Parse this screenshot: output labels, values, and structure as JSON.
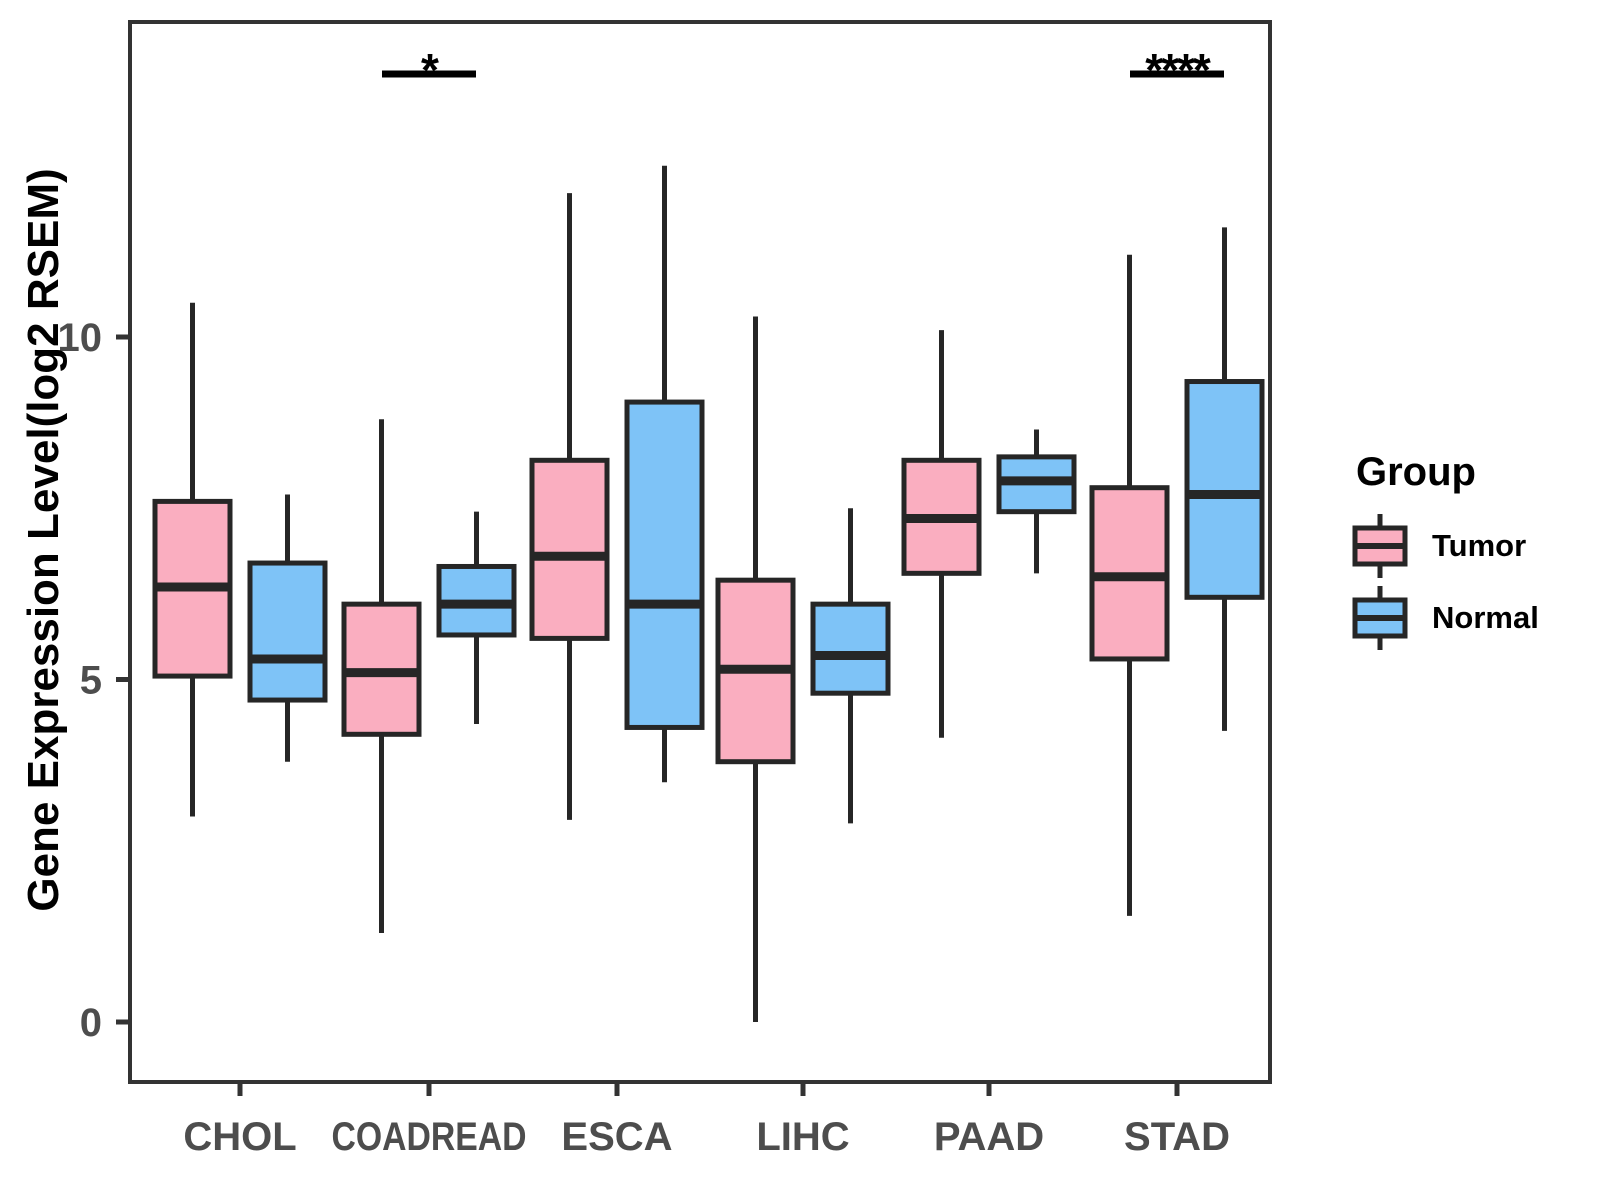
{
  "chart_data": {
    "type": "boxplot",
    "title": "",
    "xlabel": "",
    "ylabel": "Gene Expression Level(log2 RSEM)",
    "ylim": [
      -0.9,
      14.6
    ],
    "y_ticks": [
      0,
      5,
      10
    ],
    "grid": false,
    "categories": [
      "CHOL",
      "COADREAD",
      "ESCA",
      "LIHC",
      "PAAD",
      "STAD"
    ],
    "legend": {
      "title": "Group",
      "position": "right"
    },
    "series": [
      {
        "name": "Tumor",
        "color": "#FAAEC0",
        "boxes": [
          {
            "category": "CHOL",
            "min": 3.0,
            "q1": 5.05,
            "median": 6.35,
            "q3": 7.6,
            "max": 10.5
          },
          {
            "category": "COADREAD",
            "min": 1.3,
            "q1": 4.2,
            "median": 5.1,
            "q3": 6.1,
            "max": 8.8
          },
          {
            "category": "ESCA",
            "min": 2.95,
            "q1": 5.6,
            "median": 6.8,
            "q3": 8.2,
            "max": 12.1
          },
          {
            "category": "LIHC",
            "min": 0.0,
            "q1": 3.8,
            "median": 5.15,
            "q3": 6.45,
            "max": 10.3
          },
          {
            "category": "PAAD",
            "min": 4.15,
            "q1": 6.55,
            "median": 7.35,
            "q3": 8.2,
            "max": 10.1
          },
          {
            "category": "STAD",
            "min": 1.55,
            "q1": 5.3,
            "median": 6.5,
            "q3": 7.8,
            "max": 11.2
          }
        ]
      },
      {
        "name": "Normal",
        "color": "#7EC3F7",
        "boxes": [
          {
            "category": "CHOL",
            "min": 3.8,
            "q1": 4.7,
            "median": 5.3,
            "q3": 6.7,
            "max": 7.7
          },
          {
            "category": "COADREAD",
            "min": 4.35,
            "q1": 5.65,
            "median": 6.1,
            "q3": 6.65,
            "max": 7.45
          },
          {
            "category": "ESCA",
            "min": 3.5,
            "q1": 4.3,
            "median": 6.1,
            "q3": 9.05,
            "max": 12.5
          },
          {
            "category": "LIHC",
            "min": 2.9,
            "q1": 4.8,
            "median": 5.35,
            "q3": 6.1,
            "max": 7.5
          },
          {
            "category": "PAAD",
            "min": 6.55,
            "q1": 7.45,
            "median": 7.9,
            "q3": 8.25,
            "max": 8.65
          },
          {
            "category": "STAD",
            "min": 4.25,
            "q1": 6.2,
            "median": 7.7,
            "q3": 9.35,
            "max": 11.6
          }
        ]
      }
    ],
    "annotations": [
      {
        "category": "COADREAD",
        "label": "*"
      },
      {
        "category": "STAD",
        "label": "****"
      }
    ],
    "colors": {
      "box_stroke": "#262626",
      "axis_line": "#333333",
      "tick_text": "#4d4d4d",
      "annotation": "#000000"
    }
  }
}
